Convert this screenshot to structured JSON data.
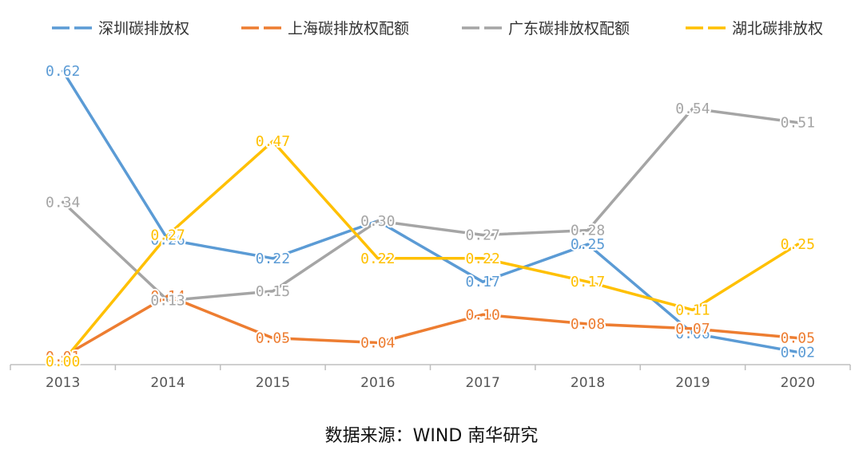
{
  "chart_data": {
    "type": "line",
    "categories": [
      "2013",
      "2014",
      "2015",
      "2016",
      "2017",
      "2018",
      "2019",
      "2020"
    ],
    "ylim": [
      0,
      0.7
    ],
    "grid": false,
    "legend_position": "top",
    "series": [
      {
        "name": "深圳碳排放权",
        "color": "#5B9BD5",
        "values": [
          0.62,
          0.26,
          0.22,
          0.3,
          0.17,
          0.25,
          0.06,
          0.02
        ],
        "labels": [
          "0.62",
          "0.26",
          "0.22",
          "0.30",
          "0.17",
          "0.25",
          "0.06",
          "0.02"
        ]
      },
      {
        "name": "上海碳排放权配额",
        "color": "#ED7D31",
        "values": [
          0.01,
          0.14,
          0.05,
          0.04,
          0.1,
          0.08,
          0.07,
          0.05
        ],
        "labels": [
          "0.01",
          "0.14",
          "0.05",
          "0.04",
          "0.10",
          "0.08",
          "0.07",
          "0.05"
        ]
      },
      {
        "name": "广东碳排放权配额",
        "color": "#A5A5A5",
        "values": [
          0.34,
          0.13,
          0.15,
          0.3,
          0.27,
          0.28,
          0.54,
          0.51
        ],
        "labels": [
          "0.34",
          "0.13",
          "0.15",
          "0.30",
          "0.27",
          "0.28",
          "0.54",
          "0.51"
        ]
      },
      {
        "name": "湖北碳排放权",
        "color": "#FFC000",
        "values": [
          0.0,
          0.27,
          0.47,
          0.22,
          0.22,
          0.17,
          0.11,
          0.25
        ],
        "labels": [
          "0.00",
          "0.27",
          "0.47",
          "0.22",
          "0.22",
          "0.17",
          "0.11",
          "0.25"
        ]
      }
    ]
  },
  "footer": {
    "source": "数据来源：WIND 南华研究"
  }
}
